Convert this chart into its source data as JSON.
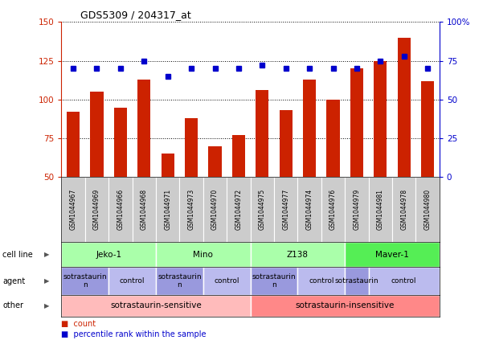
{
  "title": "GDS5309 / 204317_at",
  "samples": [
    "GSM1044967",
    "GSM1044969",
    "GSM1044966",
    "GSM1044968",
    "GSM1044971",
    "GSM1044973",
    "GSM1044970",
    "GSM1044972",
    "GSM1044975",
    "GSM1044977",
    "GSM1044974",
    "GSM1044976",
    "GSM1044979",
    "GSM1044981",
    "GSM1044978",
    "GSM1044980"
  ],
  "counts": [
    92,
    105,
    95,
    113,
    65,
    88,
    70,
    77,
    106,
    93,
    113,
    100,
    120,
    125,
    140,
    112
  ],
  "percentiles": [
    70,
    70,
    70,
    75,
    65,
    70,
    70,
    70,
    72,
    70,
    70,
    70,
    70,
    75,
    78,
    70
  ],
  "ylim_left": [
    50,
    150
  ],
  "ylim_right": [
    0,
    100
  ],
  "yticks_left": [
    50,
    75,
    100,
    125,
    150
  ],
  "yticks_right": [
    0,
    25,
    50,
    75,
    100
  ],
  "bar_color": "#CC2200",
  "dot_color": "#0000CC",
  "cell_lines": [
    {
      "label": "Jeko-1",
      "start": 0,
      "end": 4,
      "color": "#AAFFAA"
    },
    {
      "label": "Mino",
      "start": 4,
      "end": 8,
      "color": "#AAFFAA"
    },
    {
      "label": "Z138",
      "start": 8,
      "end": 12,
      "color": "#AAFFAA"
    },
    {
      "label": "Maver-1",
      "start": 12,
      "end": 16,
      "color": "#55EE55"
    }
  ],
  "agents": [
    {
      "label": "sotrastaurin\nn",
      "start": 0,
      "end": 2,
      "color": "#9999DD"
    },
    {
      "label": "control",
      "start": 2,
      "end": 4,
      "color": "#BBBBEE"
    },
    {
      "label": "sotrastaurin\nn",
      "start": 4,
      "end": 6,
      "color": "#9999DD"
    },
    {
      "label": "control",
      "start": 6,
      "end": 8,
      "color": "#BBBBEE"
    },
    {
      "label": "sotrastaurin\nn",
      "start": 8,
      "end": 10,
      "color": "#9999DD"
    },
    {
      "label": "control",
      "start": 10,
      "end": 12,
      "color": "#BBBBEE"
    },
    {
      "label": "sotrastaurin",
      "start": 12,
      "end": 13,
      "color": "#9999DD"
    },
    {
      "label": "control",
      "start": 13,
      "end": 16,
      "color": "#BBBBEE"
    }
  ],
  "others": [
    {
      "label": "sotrastaurin-sensitive",
      "start": 0,
      "end": 8,
      "color": "#FFBBBB"
    },
    {
      "label": "sotrastaurin-insensitive",
      "start": 8,
      "end": 16,
      "color": "#FF8888"
    }
  ],
  "row_labels": [
    "cell line",
    "agent",
    "other"
  ],
  "legend_count_label": "count",
  "legend_pct_label": "percentile rank within the sample",
  "bg_color": "#FFFFFF",
  "tick_box_color": "#CCCCCC",
  "grid_line_color": "#000000",
  "spine_color": "#000000"
}
